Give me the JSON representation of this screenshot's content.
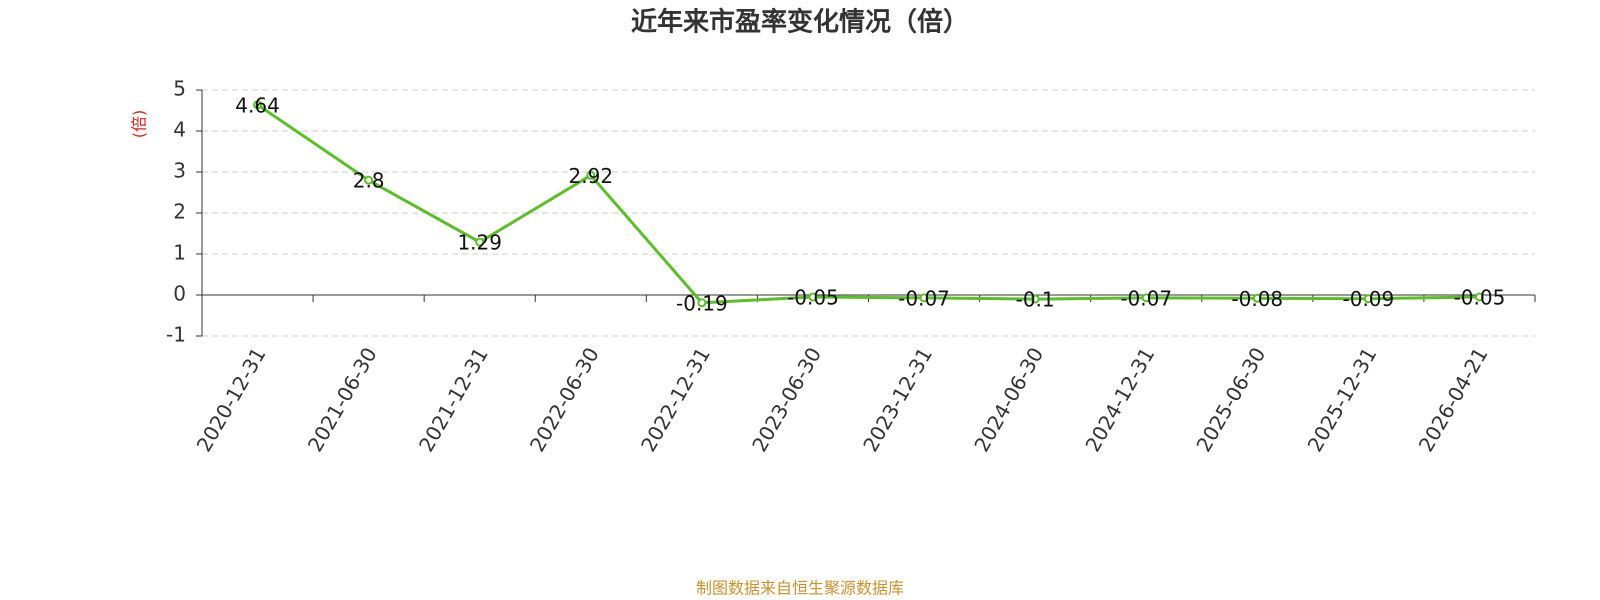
{
  "chart_data": {
    "type": "line",
    "title": "近年来市盈率变化情况（倍）",
    "y_label": "(倍)",
    "categories": [
      "2020-12-31",
      "2021-06-30",
      "2021-12-31",
      "2022-06-30",
      "2022-12-31",
      "2023-06-30",
      "2023-12-31",
      "2024-06-30",
      "2024-12-31",
      "2025-06-30",
      "2025-12-31",
      "2026-04-21"
    ],
    "series": [
      {
        "color": "#5cbf28",
        "values": [
          4.64,
          2.8,
          1.29,
          2.92,
          -0.19,
          -0.05,
          -0.07,
          -0.1,
          -0.07,
          -0.08,
          -0.09,
          -0.05
        ]
      }
    ],
    "ylim": [
      -1,
      5
    ],
    "yticks": [
      -1,
      0,
      1,
      2,
      3,
      4,
      5
    ],
    "grid": true,
    "source": "制图数据来自恒生聚源数据库"
  }
}
